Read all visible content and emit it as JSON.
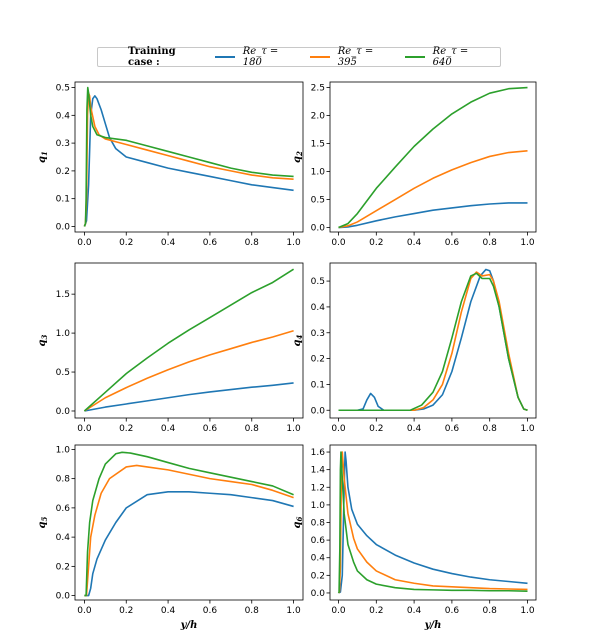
{
  "legend": {
    "title": "Training case :",
    "entries": [
      {
        "label": "Re_τ = 180",
        "color": "#1f77b4"
      },
      {
        "label": "Re_τ = 395",
        "color": "#ff7f0e"
      },
      {
        "label": "Re_τ = 640",
        "color": "#2ca02c"
      }
    ]
  },
  "chart_data": [
    {
      "type": "line",
      "ylabel": "q1",
      "xlabel": "",
      "xlim": [
        0,
        1
      ],
      "ylim": [
        -0.02,
        0.52
      ],
      "xticks": [
        "0.0",
        "0.2",
        "0.4",
        "0.6",
        "0.8",
        "1.0"
      ],
      "yticks": [
        "0.0",
        "0.1",
        "0.2",
        "0.3",
        "0.4",
        "0.5"
      ],
      "series": [
        {
          "name": "Re_τ = 180",
          "color": "#1f77b4",
          "x": [
            0,
            0.005,
            0.01,
            0.02,
            0.03,
            0.04,
            0.05,
            0.06,
            0.08,
            0.1,
            0.12,
            0.15,
            0.2,
            0.3,
            0.4,
            0.5,
            0.6,
            0.7,
            0.8,
            0.9,
            1.0
          ],
          "y": [
            0,
            0.01,
            0.02,
            0.15,
            0.4,
            0.46,
            0.47,
            0.46,
            0.42,
            0.37,
            0.32,
            0.28,
            0.25,
            0.23,
            0.21,
            0.195,
            0.18,
            0.165,
            0.15,
            0.14,
            0.13
          ]
        },
        {
          "name": "Re_τ = 395",
          "color": "#ff7f0e",
          "x": [
            0,
            0.005,
            0.01,
            0.015,
            0.02,
            0.025,
            0.03,
            0.05,
            0.07,
            0.1,
            0.15,
            0.2,
            0.3,
            0.4,
            0.5,
            0.6,
            0.7,
            0.8,
            0.9,
            1.0
          ],
          "y": [
            0,
            0.01,
            0.1,
            0.4,
            0.48,
            0.47,
            0.43,
            0.36,
            0.33,
            0.315,
            0.305,
            0.295,
            0.275,
            0.255,
            0.235,
            0.215,
            0.2,
            0.185,
            0.175,
            0.17
          ]
        },
        {
          "name": "Re_τ = 640",
          "color": "#2ca02c",
          "x": [
            0,
            0.005,
            0.008,
            0.012,
            0.016,
            0.02,
            0.025,
            0.03,
            0.04,
            0.06,
            0.1,
            0.15,
            0.2,
            0.3,
            0.4,
            0.5,
            0.6,
            0.7,
            0.8,
            0.9,
            1.0
          ],
          "y": [
            0,
            0.01,
            0.1,
            0.42,
            0.5,
            0.48,
            0.44,
            0.4,
            0.36,
            0.33,
            0.32,
            0.315,
            0.31,
            0.29,
            0.27,
            0.25,
            0.23,
            0.21,
            0.195,
            0.185,
            0.18
          ]
        }
      ]
    },
    {
      "type": "line",
      "ylabel": "q2",
      "xlabel": "",
      "xlim": [
        0,
        1
      ],
      "ylim": [
        -0.08,
        2.6
      ],
      "xticks": [
        "0.0",
        "0.2",
        "0.4",
        "0.6",
        "0.8",
        "1.0"
      ],
      "yticks": [
        "0.0",
        "0.5",
        "1.0",
        "1.5",
        "2.0",
        "2.5"
      ],
      "series": [
        {
          "name": "Re_τ = 180",
          "color": "#1f77b4",
          "x": [
            0,
            0.05,
            0.1,
            0.2,
            0.3,
            0.4,
            0.5,
            0.6,
            0.7,
            0.8,
            0.9,
            1.0
          ],
          "y": [
            0,
            0.01,
            0.04,
            0.12,
            0.19,
            0.25,
            0.31,
            0.35,
            0.39,
            0.42,
            0.44,
            0.44
          ]
        },
        {
          "name": "Re_τ = 395",
          "color": "#ff7f0e",
          "x": [
            0,
            0.05,
            0.1,
            0.2,
            0.3,
            0.4,
            0.5,
            0.6,
            0.7,
            0.8,
            0.9,
            1.0
          ],
          "y": [
            0,
            0.03,
            0.1,
            0.3,
            0.5,
            0.7,
            0.88,
            1.03,
            1.16,
            1.27,
            1.34,
            1.37
          ]
        },
        {
          "name": "Re_τ = 640",
          "color": "#2ca02c",
          "x": [
            0,
            0.05,
            0.1,
            0.2,
            0.3,
            0.4,
            0.5,
            0.6,
            0.7,
            0.8,
            0.9,
            1.0
          ],
          "y": [
            0,
            0.07,
            0.25,
            0.7,
            1.08,
            1.45,
            1.76,
            2.03,
            2.24,
            2.4,
            2.48,
            2.5
          ]
        }
      ]
    },
    {
      "type": "line",
      "ylabel": "q3",
      "xlabel": "",
      "xlim": [
        0,
        1
      ],
      "ylim": [
        -0.09,
        1.9
      ],
      "xticks": [
        "0.0",
        "0.2",
        "0.4",
        "0.6",
        "0.8",
        "1.0"
      ],
      "yticks": [
        "0.0",
        "0.5",
        "1.0",
        "1.5"
      ],
      "series": [
        {
          "name": "Re_τ = 180",
          "color": "#1f77b4",
          "x": [
            0,
            0.1,
            0.2,
            0.3,
            0.4,
            0.5,
            0.6,
            0.7,
            0.8,
            0.9,
            1.0
          ],
          "y": [
            0,
            0.05,
            0.09,
            0.13,
            0.17,
            0.21,
            0.245,
            0.275,
            0.305,
            0.33,
            0.36
          ]
        },
        {
          "name": "Re_τ = 395",
          "color": "#ff7f0e",
          "x": [
            0,
            0.1,
            0.2,
            0.3,
            0.4,
            0.5,
            0.6,
            0.7,
            0.8,
            0.9,
            1.0
          ],
          "y": [
            0,
            0.17,
            0.3,
            0.42,
            0.53,
            0.63,
            0.72,
            0.8,
            0.88,
            0.95,
            1.03
          ]
        },
        {
          "name": "Re_τ = 640",
          "color": "#2ca02c",
          "x": [
            0,
            0.1,
            0.2,
            0.3,
            0.4,
            0.5,
            0.6,
            0.7,
            0.8,
            0.9,
            1.0
          ],
          "y": [
            0,
            0.24,
            0.48,
            0.68,
            0.87,
            1.04,
            1.2,
            1.36,
            1.52,
            1.65,
            1.82
          ]
        }
      ]
    },
    {
      "type": "line",
      "ylabel": "q4",
      "xlabel": "",
      "xlim": [
        0,
        1
      ],
      "ylim": [
        -0.03,
        0.57
      ],
      "xticks": [
        "0.0",
        "0.2",
        "0.4",
        "0.6",
        "0.8",
        "1.0"
      ],
      "yticks": [
        "0.0",
        "0.1",
        "0.2",
        "0.3",
        "0.4",
        "0.5"
      ],
      "series": [
        {
          "name": "Re_τ = 180",
          "color": "#1f77b4",
          "x": [
            0,
            0.1,
            0.13,
            0.15,
            0.17,
            0.19,
            0.21,
            0.24,
            0.4,
            0.45,
            0.5,
            0.55,
            0.6,
            0.65,
            0.7,
            0.75,
            0.78,
            0.8,
            0.82,
            0.85,
            0.9,
            0.95,
            0.98,
            1.0
          ],
          "y": [
            0,
            0,
            0.005,
            0.04,
            0.065,
            0.05,
            0.015,
            0,
            0,
            0.005,
            0.02,
            0.06,
            0.15,
            0.28,
            0.42,
            0.52,
            0.545,
            0.54,
            0.5,
            0.4,
            0.2,
            0.05,
            0.005,
            0
          ]
        },
        {
          "name": "Re_τ = 395",
          "color": "#ff7f0e",
          "x": [
            0,
            0.4,
            0.45,
            0.5,
            0.55,
            0.6,
            0.65,
            0.7,
            0.73,
            0.76,
            0.8,
            0.82,
            0.85,
            0.9,
            0.95,
            0.98,
            1.0
          ],
          "y": [
            0,
            0,
            0.01,
            0.04,
            0.1,
            0.22,
            0.38,
            0.51,
            0.535,
            0.52,
            0.525,
            0.5,
            0.42,
            0.22,
            0.05,
            0.005,
            0
          ]
        },
        {
          "name": "Re_τ = 640",
          "color": "#2ca02c",
          "x": [
            0,
            0.38,
            0.44,
            0.5,
            0.55,
            0.6,
            0.65,
            0.7,
            0.73,
            0.76,
            0.8,
            0.82,
            0.85,
            0.9,
            0.95,
            0.98,
            1.0
          ],
          "y": [
            0,
            0,
            0.02,
            0.07,
            0.15,
            0.28,
            0.42,
            0.52,
            0.53,
            0.51,
            0.51,
            0.48,
            0.4,
            0.2,
            0.05,
            0.005,
            0
          ]
        }
      ]
    },
    {
      "type": "line",
      "ylabel": "q5",
      "xlabel": "y/h",
      "xlim": [
        0,
        1
      ],
      "ylim": [
        -0.03,
        1.03
      ],
      "xticks": [
        "0.0",
        "0.2",
        "0.4",
        "0.6",
        "0.8",
        "1.0"
      ],
      "yticks": [
        "0.0",
        "0.2",
        "0.4",
        "0.6",
        "0.8",
        "1.0"
      ],
      "series": [
        {
          "name": "Re_τ = 180",
          "color": "#1f77b4",
          "x": [
            0,
            0.02,
            0.03,
            0.04,
            0.06,
            0.1,
            0.15,
            0.2,
            0.3,
            0.4,
            0.5,
            0.6,
            0.7,
            0.8,
            0.9,
            1.0
          ],
          "y": [
            0,
            0,
            0.05,
            0.15,
            0.25,
            0.38,
            0.5,
            0.6,
            0.69,
            0.71,
            0.71,
            0.7,
            0.69,
            0.67,
            0.65,
            0.61
          ]
        },
        {
          "name": "Re_τ = 395",
          "color": "#ff7f0e",
          "x": [
            0,
            0.01,
            0.02,
            0.03,
            0.05,
            0.08,
            0.12,
            0.2,
            0.25,
            0.3,
            0.4,
            0.5,
            0.6,
            0.7,
            0.8,
            0.9,
            1.0
          ],
          "y": [
            0,
            0,
            0.2,
            0.4,
            0.55,
            0.7,
            0.8,
            0.88,
            0.89,
            0.88,
            0.86,
            0.83,
            0.8,
            0.78,
            0.76,
            0.72,
            0.67
          ]
        },
        {
          "name": "Re_τ = 640",
          "color": "#2ca02c",
          "x": [
            0,
            0.008,
            0.015,
            0.025,
            0.04,
            0.07,
            0.1,
            0.15,
            0.18,
            0.22,
            0.3,
            0.4,
            0.5,
            0.6,
            0.7,
            0.8,
            0.9,
            1.0
          ],
          "y": [
            0,
            0,
            0.3,
            0.5,
            0.65,
            0.8,
            0.9,
            0.97,
            0.98,
            0.975,
            0.95,
            0.91,
            0.87,
            0.84,
            0.81,
            0.78,
            0.75,
            0.69
          ]
        }
      ]
    },
    {
      "type": "line",
      "ylabel": "q6",
      "xlabel": "y/h",
      "xlim": [
        0,
        1
      ],
      "ylim": [
        -0.08,
        1.68
      ],
      "xticks": [
        "0.0",
        "0.2",
        "0.4",
        "0.6",
        "0.8",
        "1.0"
      ],
      "yticks": [
        "0.0",
        "0.2",
        "0.4",
        "0.6",
        "0.8",
        "1.0",
        "1.2",
        "1.4",
        "1.6"
      ],
      "series": [
        {
          "name": "Re_τ = 180",
          "color": "#1f77b4",
          "x": [
            0,
            0.01,
            0.02,
            0.03,
            0.035,
            0.04,
            0.05,
            0.07,
            0.1,
            0.15,
            0.2,
            0.3,
            0.4,
            0.5,
            0.6,
            0.7,
            0.8,
            0.9,
            1.0
          ],
          "y": [
            0,
            0.01,
            0.2,
            1.2,
            1.6,
            1.5,
            1.2,
            0.95,
            0.78,
            0.65,
            0.55,
            0.43,
            0.34,
            0.27,
            0.22,
            0.18,
            0.15,
            0.13,
            0.11
          ]
        },
        {
          "name": "Re_τ = 395",
          "color": "#ff7f0e",
          "x": [
            0,
            0.005,
            0.01,
            0.015,
            0.02,
            0.03,
            0.05,
            0.08,
            0.1,
            0.15,
            0.2,
            0.3,
            0.4,
            0.5,
            0.6,
            0.7,
            0.8,
            0.9,
            1.0
          ],
          "y": [
            0,
            0.01,
            0.3,
            1.3,
            1.6,
            1.3,
            0.9,
            0.62,
            0.5,
            0.35,
            0.25,
            0.15,
            0.11,
            0.08,
            0.07,
            0.06,
            0.05,
            0.045,
            0.04
          ]
        },
        {
          "name": "Re_τ = 640",
          "color": "#2ca02c",
          "x": [
            0,
            0.003,
            0.007,
            0.01,
            0.013,
            0.02,
            0.03,
            0.05,
            0.08,
            0.1,
            0.15,
            0.2,
            0.3,
            0.4,
            0.5,
            0.6,
            0.7,
            0.8,
            0.9,
            1.0
          ],
          "y": [
            0,
            0.01,
            0.5,
            1.4,
            1.6,
            1.3,
            0.9,
            0.55,
            0.35,
            0.25,
            0.15,
            0.1,
            0.06,
            0.04,
            0.035,
            0.03,
            0.03,
            0.025,
            0.025,
            0.02
          ]
        }
      ]
    }
  ]
}
